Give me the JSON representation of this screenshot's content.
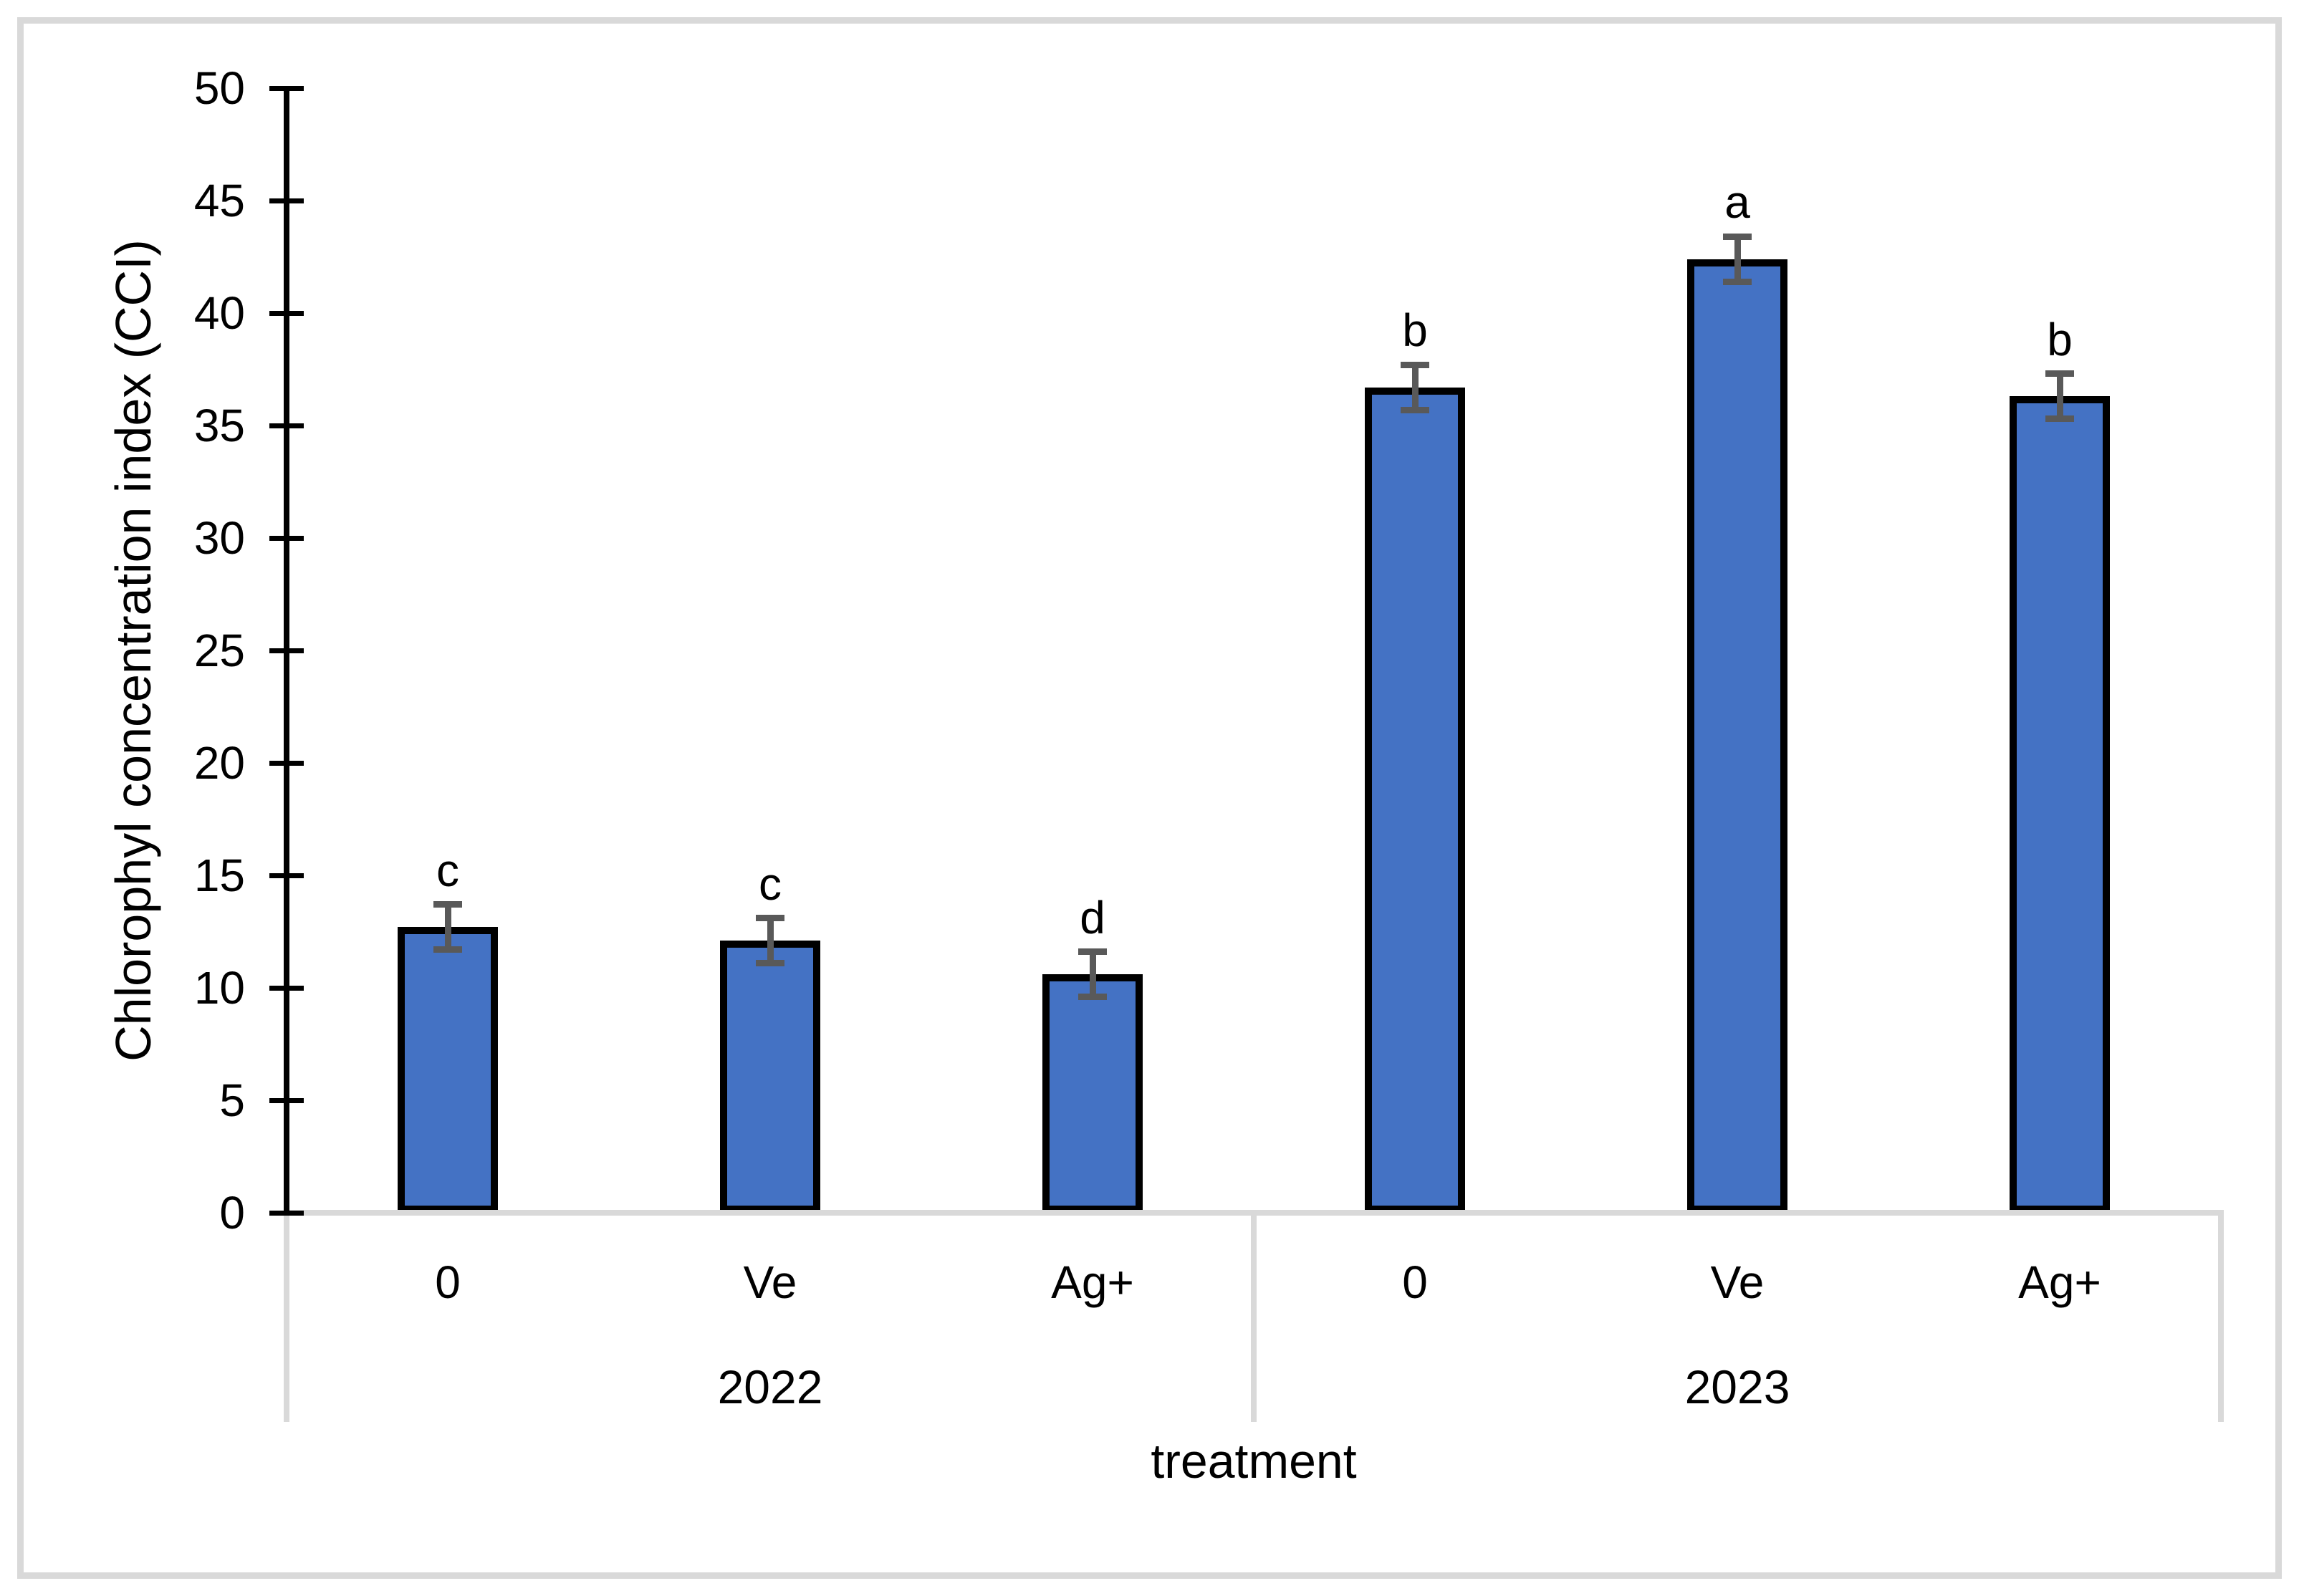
{
  "chart_data": {
    "type": "bar",
    "title": "",
    "ylabel": "Chlorophyl concentration index (CCI)",
    "xlabel": "treatment",
    "ylim": [
      0,
      50
    ],
    "ytick_step": 5,
    "yticks": [
      0,
      5,
      10,
      15,
      20,
      25,
      30,
      35,
      40,
      45,
      50
    ],
    "grid": false,
    "legend": false,
    "error_bars": true,
    "groups": [
      {
        "label": "2022",
        "bars": [
          {
            "category": "0",
            "value": 12.7,
            "error": 1.0,
            "sig_letter": "c"
          },
          {
            "category": "Ve",
            "value": 12.1,
            "error": 1.0,
            "sig_letter": "c"
          },
          {
            "category": "Ag+",
            "value": 10.6,
            "error": 1.0,
            "sig_letter": "d"
          }
        ]
      },
      {
        "label": "2023",
        "bars": [
          {
            "category": "0",
            "value": 36.7,
            "error": 1.0,
            "sig_letter": "b"
          },
          {
            "category": "Ve",
            "value": 42.4,
            "error": 1.0,
            "sig_letter": "a"
          },
          {
            "category": "Ag+",
            "value": 36.3,
            "error": 1.0,
            "sig_letter": "b"
          }
        ]
      }
    ],
    "colors": {
      "bar_fill": "#4472c4",
      "bar_border": "#000000",
      "error_bar": "#595959",
      "axis": "#000000",
      "axis_table_lines": "#d9d9d9",
      "figure_border": "#d9d9d9",
      "background": "#ffffff",
      "text": "#000000"
    }
  }
}
